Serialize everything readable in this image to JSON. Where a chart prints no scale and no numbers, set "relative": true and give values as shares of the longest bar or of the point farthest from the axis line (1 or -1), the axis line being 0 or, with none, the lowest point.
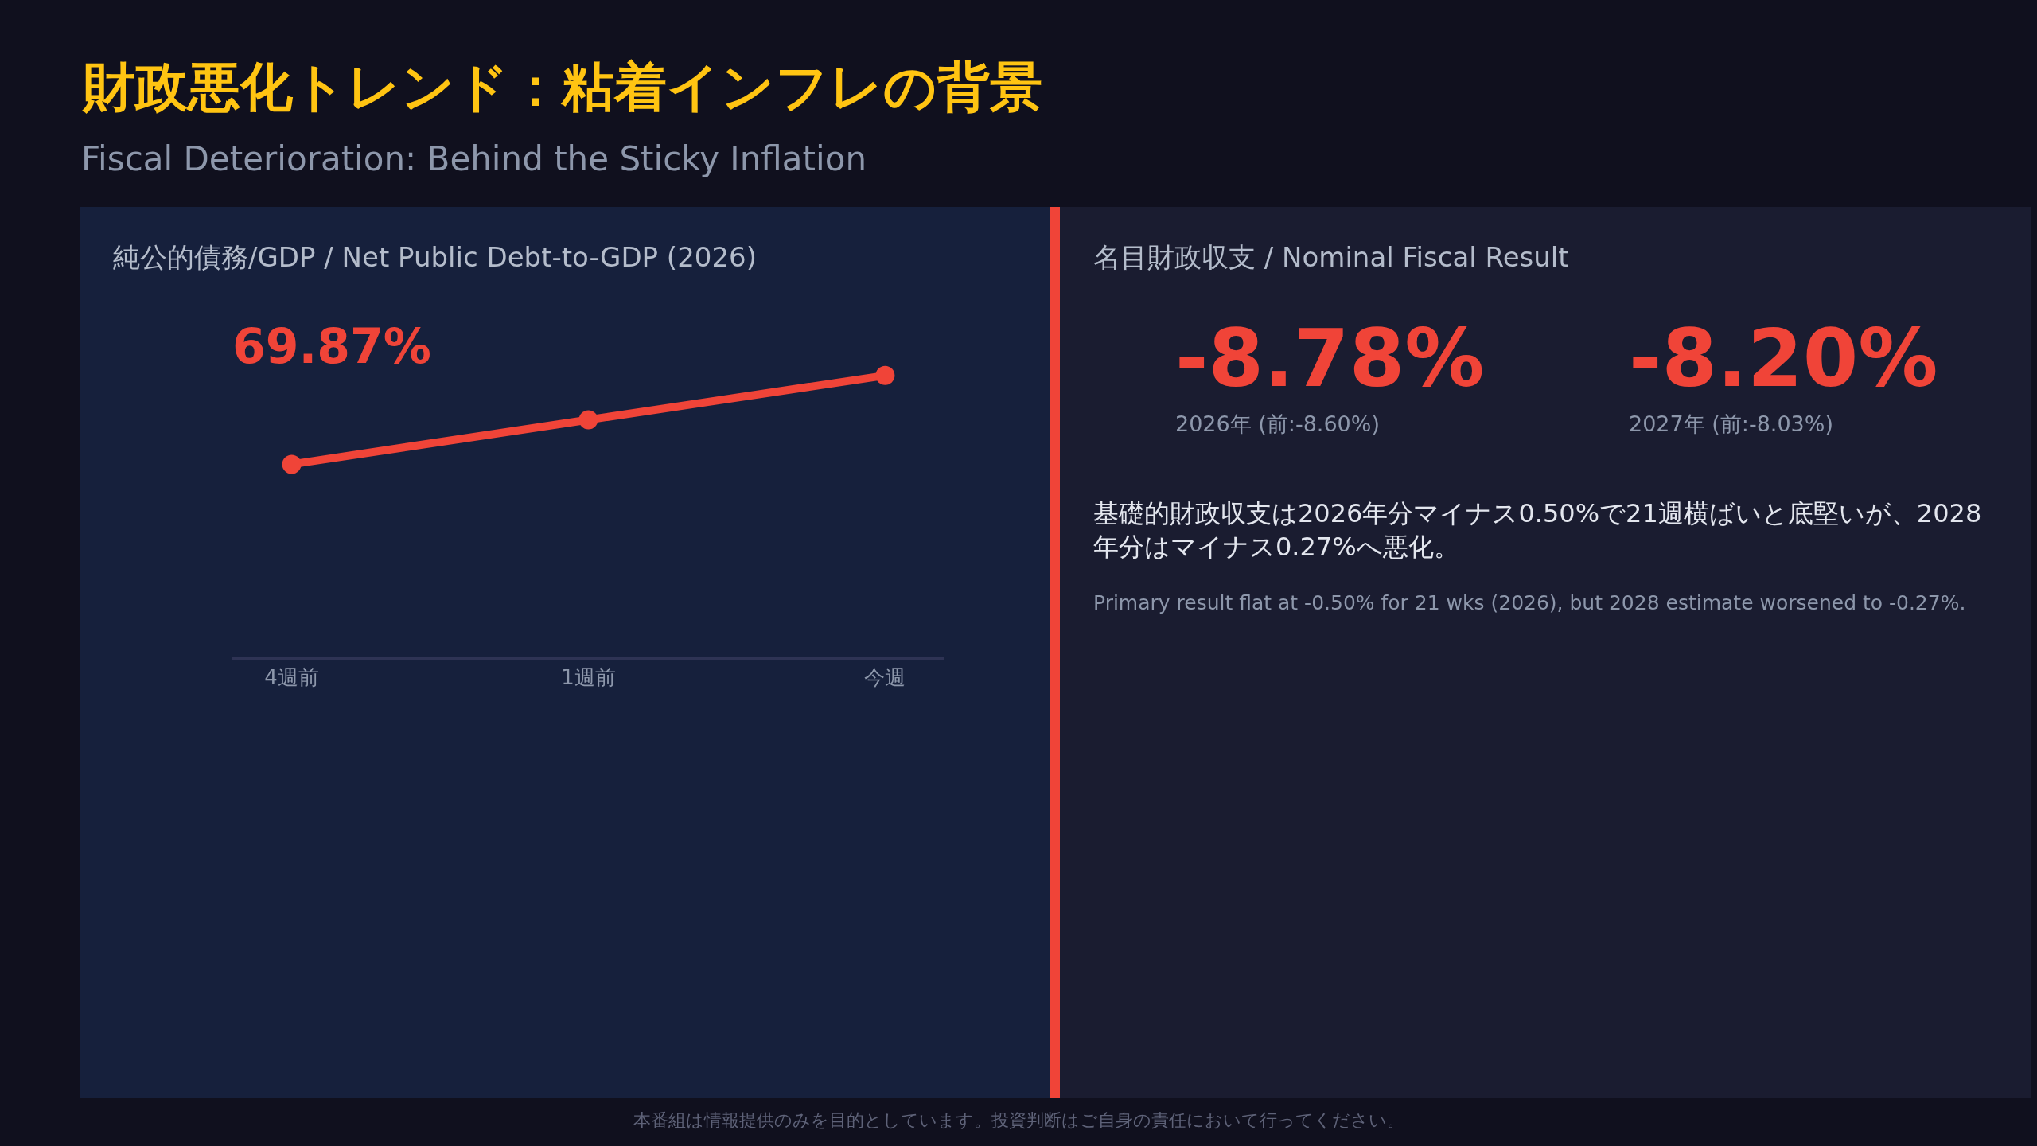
{
  "chart_data": [
    {
      "type": "other",
      "title": "財政悪化トレンド：粘着インフレの背景",
      "subtitle": "Fiscal Deterioration: Behind the Sticky Inflation",
      "annotations": [
        "本番組は情報提供のみを目的としています。投資判断はご自身の責任において行ってください。"
      ]
    },
    {
      "type": "line",
      "title": "純公的債務/GDP / Net Public Debt-to-GDP (2026)",
      "categories": [
        "4週前",
        "1週前",
        "今週"
      ],
      "values": [
        0.685,
        0.843,
        1
      ],
      "relative": true,
      "color": "#f04438",
      "marker": "circle",
      "line_style": "solid",
      "annotations": [
        "69.87%"
      ]
    },
    {
      "type": "other",
      "title": "名目財政収支 / Nominal Fiscal Result",
      "annotations": [
        "-8.78%",
        "2026年 (前:-8.60%)",
        "-8.20%",
        "2027年 (前:-8.03%)",
        "基礎的財政収支は2026年分マイナス0.50%で21週横ばいと底堅いが、2028年分はマイナス0.27%へ悪化。",
        "Primary result flat at -0.50% for 21 wks (2026), but 2028 estimate worsened to -0.27%."
      ]
    }
  ]
}
